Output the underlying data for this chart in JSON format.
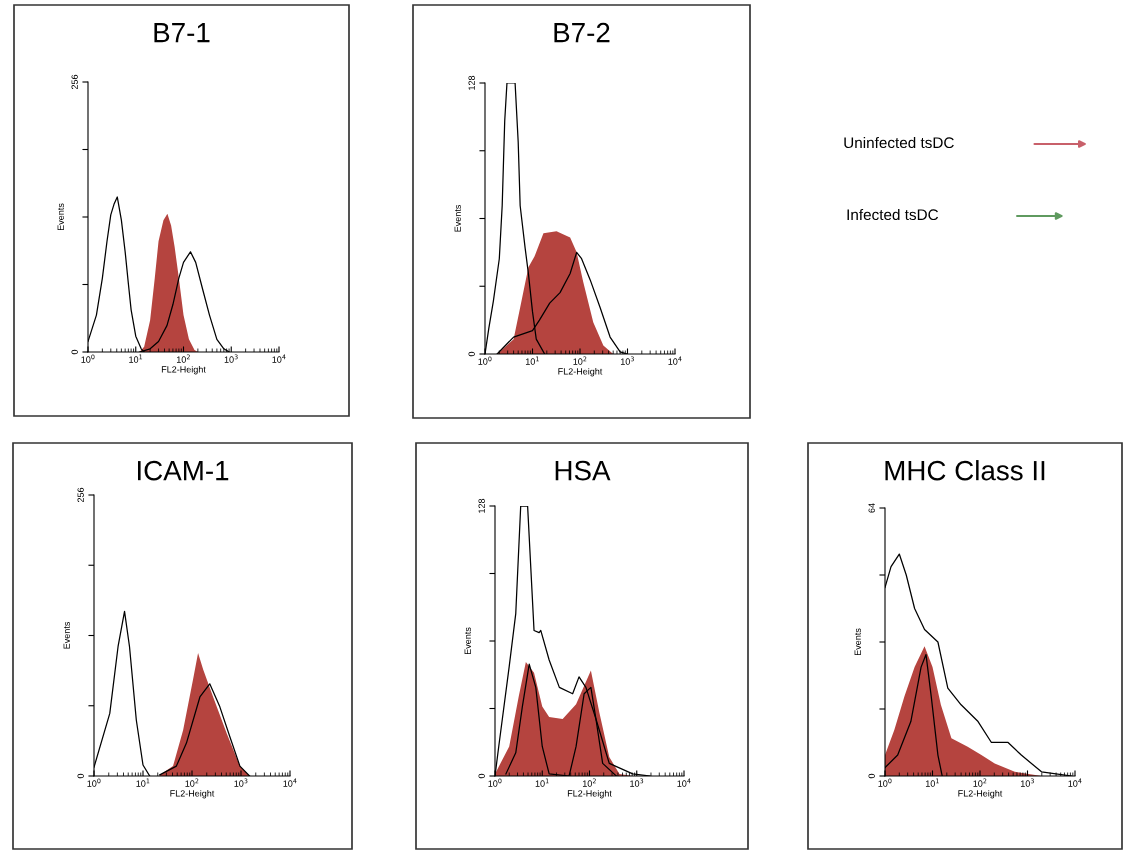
{
  "chart_data": [
    {
      "type": "area",
      "title": "B7-1",
      "xlabel": "FL2-Height",
      "ylabel": "Events",
      "log": "x",
      "xlim": [
        1,
        10000
      ],
      "xticks": [
        {
          "value": 1,
          "label": "10$^{0}$"
        },
        {
          "value": 10,
          "label": "10$^{1}$"
        },
        {
          "value": 100,
          "label": "10$^{2}$"
        },
        {
          "value": 1000,
          "label": "10$^{3}$"
        },
        {
          "value": 10000,
          "label": "10$^{4}$"
        }
      ],
      "ylim": [
        0,
        256
      ],
      "yticks": [
        0,
        {
          "value": 64,
          "label": null
        },
        {
          "value": 128,
          "label": null
        },
        {
          "value": 192,
          "label": null
        },
        256
      ],
      "series": [
        {
          "type": "line",
          "color": "#000000",
          "x": [
            1,
            1.5,
            2,
            2.5,
            3,
            3.5,
            4.1,
            5,
            6,
            7,
            8,
            10,
            13,
            15
          ],
          "values": [
            10,
            35,
            70,
            105,
            130,
            140,
            147,
            125,
            95,
            65,
            40,
            15,
            3,
            0
          ]
        },
        {
          "type": "area",
          "color": "#b5443f",
          "x": [
            12,
            15,
            20,
            25,
            30,
            38,
            46,
            55,
            65,
            80,
            100,
            130,
            170,
            200
          ],
          "values": [
            0,
            5,
            30,
            70,
            105,
            125,
            131,
            120,
            100,
            70,
            35,
            12,
            2,
            0
          ]
        },
        {
          "type": "line",
          "color": "#000000",
          "x": [
            12,
            20,
            30,
            45,
            60,
            80,
            100,
            140,
            180,
            250,
            350,
            500,
            700,
            900
          ],
          "values": [
            0,
            3,
            10,
            25,
            45,
            70,
            85,
            95,
            85,
            60,
            35,
            12,
            3,
            0
          ]
        }
      ]
    },
    {
      "type": "area",
      "title": "B7-2",
      "xlabel": "FL2-Height",
      "ylabel": "Events",
      "log": "x",
      "xlim": [
        1,
        10000
      ],
      "xticks": [
        {
          "value": 1,
          "label": "10$^{0}$"
        },
        {
          "value": 10,
          "label": "10$^{1}$"
        },
        {
          "value": 100,
          "label": "10$^{2}$"
        },
        {
          "value": 1000,
          "label": "10$^{3}$"
        },
        {
          "value": 10000,
          "label": "10$^{4}$"
        }
      ],
      "ylim": [
        0,
        128
      ],
      "yticks": [
        0,
        {
          "value": 32,
          "label": null
        },
        {
          "value": 64,
          "label": null
        },
        {
          "value": 96,
          "label": null
        },
        128
      ],
      "series": [
        {
          "type": "line",
          "color": "#000000",
          "x": [
            1,
            1.2,
            1.5,
            2,
            2.3,
            2.6,
            2.9,
            4.3,
            5,
            5.5,
            7,
            8.2,
            10,
            12,
            18
          ],
          "values": [
            0,
            12,
            25,
            45,
            70,
            110,
            128,
            128,
            100,
            70,
            50,
            38,
            20,
            7,
            0
          ]
        },
        {
          "type": "area",
          "color": "#b5443f",
          "x": [
            1.8,
            4,
            5.5,
            8.2,
            11,
            17,
            32,
            62,
            85,
            117,
            190,
            310,
            500
          ],
          "values": [
            0,
            7,
            22,
            41,
            46,
            57,
            58,
            55,
            48,
            34,
            15,
            4,
            0
          ]
        },
        {
          "type": "line",
          "color": "#000000",
          "x": [
            1.8,
            4,
            10,
            14,
            23,
            38,
            62,
            85,
            108,
            164,
            265,
            430,
            700,
            960
          ],
          "values": [
            0,
            8,
            11,
            16,
            24,
            29,
            38,
            48,
            45,
            35,
            22,
            8,
            1,
            0
          ]
        }
      ]
    },
    {
      "type": "other",
      "annotations": [
        "Uninfected tsDC",
        "Infected tsDC"
      ],
      "colors": [
        "#c8606a",
        "#5f9a5f"
      ]
    },
    {
      "type": "area",
      "title": "ICAM-1",
      "xlabel": "FL2-Height",
      "ylabel": "Events",
      "log": "x",
      "xlim": [
        1,
        10000
      ],
      "xticks": [
        {
          "value": 1,
          "label": "10$^{0}$"
        },
        {
          "value": 10,
          "label": "10$^{1}$"
        },
        {
          "value": 100,
          "label": "10$^{2}$"
        },
        {
          "value": 1000,
          "label": "10$^{3}$"
        },
        {
          "value": 10000,
          "label": "10$^{4}$"
        }
      ],
      "ylim": [
        0,
        256
      ],
      "yticks": [
        0,
        {
          "value": 64,
          "label": null
        },
        {
          "value": 128,
          "label": null
        },
        {
          "value": 192,
          "label": null
        },
        256
      ],
      "series": [
        {
          "type": "line",
          "color": "#000000",
          "x": [
            1,
            2.1,
            3.1,
            4.2,
            5.3,
            7.3,
            10,
            13.7
          ],
          "values": [
            8,
            57,
            118,
            150,
            118,
            51,
            10,
            0
          ]
        },
        {
          "type": "area",
          "color": "#b5443f",
          "x": [
            22,
            41,
            66,
            105,
            133,
            169,
            270,
            510,
            950,
            1500
          ],
          "values": [
            1,
            9,
            42,
            88,
            112,
            97,
            72,
            39,
            9,
            0
          ]
        },
        {
          "type": "line",
          "color": "#000000",
          "x": [
            22,
            48,
            77,
            145,
            230,
            370,
            590,
            950,
            1500
          ],
          "values": [
            1,
            9,
            30,
            72,
            84,
            63,
            36,
            9,
            0
          ]
        }
      ]
    },
    {
      "type": "area",
      "title": "HSA",
      "xlabel": "FL2-Height",
      "ylabel": "Events",
      "log": "x",
      "xlim": [
        1,
        10000
      ],
      "xticks": [
        {
          "value": 1,
          "label": "10$^{0}$"
        },
        {
          "value": 10,
          "label": "10$^{1}$"
        },
        {
          "value": 100,
          "label": "10$^{2}$"
        },
        {
          "value": 1000,
          "label": "10$^{3}$"
        },
        {
          "value": 10000,
          "label": "10$^{4}$"
        }
      ],
      "ylim": [
        0,
        128
      ],
      "yticks": [
        0,
        {
          "value": 32,
          "label": null
        },
        {
          "value": 64,
          "label": null
        },
        {
          "value": 96,
          "label": null
        },
        128
      ],
      "series": [
        {
          "type": "line",
          "color": "#000000",
          "x": [
            1,
            1.2,
            2,
            2.75,
            3.5,
            4.9,
            6.7,
            8.6,
            9.3,
            14,
            23,
            44,
            60,
            84,
            137,
            262,
            820,
            1900
          ],
          "values": [
            0,
            14,
            52,
            77,
            128,
            128,
            69,
            68,
            69,
            55,
            42,
            39,
            47,
            42,
            27,
            6,
            1,
            0
          ]
        },
        {
          "type": "area",
          "color": "#b5443f",
          "x": [
            1,
            2,
            3.2,
            4.5,
            6.7,
            10,
            14,
            27,
            52,
            107,
            162,
            262,
            430,
            820
          ],
          "values": [
            1,
            14,
            38,
            54,
            49,
            33,
            28,
            27,
            34,
            50,
            30,
            9,
            1,
            0
          ]
        },
        {
          "type": "line",
          "color": "#000000",
          "x": [
            1.7,
            2.75,
            3.8,
            5.3,
            7.3,
            10,
            14,
            37,
            52,
            77,
            107,
            137,
            190,
            370
          ],
          "values": [
            1,
            11,
            33,
            53,
            42,
            14,
            1,
            0,
            14,
            39,
            42,
            27,
            6,
            0
          ]
        }
      ]
    },
    {
      "type": "area",
      "title": "MHC Class II",
      "xlabel": "FL2-Height",
      "ylabel": "Events",
      "log": "x",
      "xlim": [
        1,
        10000
      ],
      "xticks": [
        {
          "value": 1,
          "label": "10$^{0}$"
        },
        {
          "value": 10,
          "label": "10$^{1}$"
        },
        {
          "value": 100,
          "label": "10$^{2}$"
        },
        {
          "value": 1000,
          "label": "10$^{3}$"
        },
        {
          "value": 10000,
          "label": "10$^{4}$"
        }
      ],
      "ylim": [
        0,
        64
      ],
      "yticks": [
        0,
        {
          "value": 16,
          "label": null
        },
        {
          "value": 32,
          "label": null
        },
        {
          "value": 48,
          "label": null
        },
        64
      ],
      "series": [
        {
          "type": "line",
          "color": "#000000",
          "x": [
            1,
            1.85,
            3.5,
            5.75,
            7.3,
            9.4,
            13,
            16
          ],
          "values": [
            2,
            5,
            13,
            26,
            29,
            19,
            5,
            0
          ]
        },
        {
          "type": "area",
          "color": "#b5443f",
          "x": [
            1,
            1.57,
            2.56,
            4.2,
            6.8,
            10,
            15,
            25,
            55,
            107,
            204,
            540,
            1970
          ],
          "values": [
            5,
            11,
            19,
            26,
            31,
            26,
            17,
            9,
            7,
            5,
            3,
            1,
            0
          ]
        },
        {
          "type": "line",
          "color": "#000000",
          "x": [
            1,
            1.34,
            2,
            2.8,
            4.2,
            6.8,
            13,
            21,
            40,
            91,
            174,
            390,
            740,
            1970,
            8400
          ],
          "values": [
            45,
            50,
            53,
            48,
            40,
            35,
            32,
            21,
            17,
            13,
            8,
            8,
            5,
            1,
            0
          ]
        }
      ]
    }
  ]
}
